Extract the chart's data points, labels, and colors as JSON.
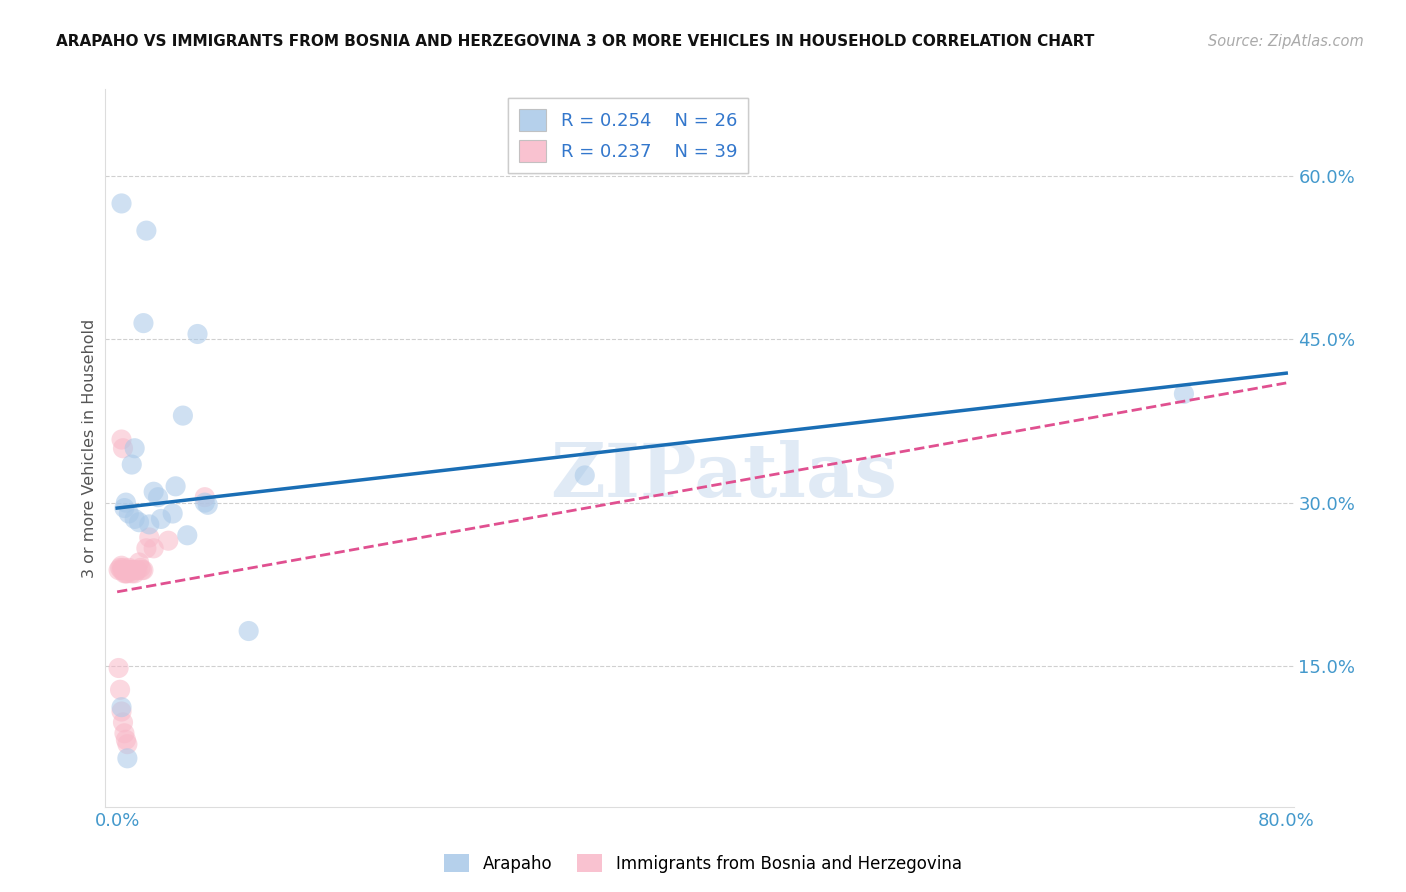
{
  "title": "ARAPAHO VS IMMIGRANTS FROM BOSNIA AND HERZEGOVINA 3 OR MORE VEHICLES IN HOUSEHOLD CORRELATION CHART",
  "source": "Source: ZipAtlas.com",
  "ylabel": "3 or more Vehicles in Household",
  "xlim_min": -0.008,
  "xlim_max": 0.805,
  "ylim_min": 0.02,
  "ylim_max": 0.68,
  "yticks": [
    0.15,
    0.3,
    0.45,
    0.6
  ],
  "ytick_labels": [
    "15.0%",
    "30.0%",
    "45.0%",
    "60.0%"
  ],
  "xtick_vals": [
    0.0,
    0.1,
    0.2,
    0.3,
    0.4,
    0.5,
    0.6,
    0.7,
    0.8
  ],
  "xtick_labels": [
    "0.0%",
    "",
    "",
    "",
    "",
    "",
    "",
    "",
    "80.0%"
  ],
  "watermark": "ZIPatlas",
  "legend_r1": "R = 0.254",
  "legend_n1": "N = 26",
  "legend_r2": "R = 0.237",
  "legend_n2": "N = 39",
  "color_blue": "#a8c8e8",
  "color_pink": "#f8b8c8",
  "color_line_blue": "#1a6eb5",
  "color_line_pink": "#e05090",
  "color_axis_label": "#4499cc",
  "color_grid": "#d0d0d0",
  "arapaho_x": [
    0.003,
    0.022,
    0.008,
    0.045,
    0.012,
    0.006,
    0.009,
    0.01,
    0.038,
    0.06,
    0.025,
    0.012,
    0.005,
    0.09,
    0.32,
    0.73,
    0.017,
    0.04,
    0.003,
    0.007
  ],
  "arapaho_y": [
    0.575,
    0.555,
    0.465,
    0.455,
    0.385,
    0.355,
    0.335,
    0.31,
    0.295,
    0.295,
    0.285,
    0.29,
    0.298,
    0.305,
    0.325,
    0.4,
    0.275,
    0.178,
    0.115,
    0.065
  ],
  "arapaho_x2": [
    0.003,
    0.022,
    0.06,
    0.31,
    0.73,
    0.005,
    0.09
  ],
  "arapaho_y2": [
    0.575,
    0.555,
    0.295,
    0.325,
    0.4,
    0.298,
    0.305
  ],
  "bosnia_x": [
    0.001,
    0.002,
    0.003,
    0.004,
    0.005,
    0.006,
    0.006,
    0.007,
    0.008,
    0.008,
    0.009,
    0.01,
    0.011,
    0.012,
    0.013,
    0.014,
    0.015,
    0.016,
    0.018,
    0.02,
    0.022,
    0.03,
    0.038,
    0.042,
    0.055,
    0.06,
    0.002,
    0.003,
    0.004,
    0.005,
    0.006,
    0.007,
    0.008,
    0.009,
    0.01,
    0.015,
    0.02,
    0.025,
    0.035
  ],
  "bosnia_y": [
    0.235,
    0.235,
    0.24,
    0.235,
    0.235,
    0.24,
    0.235,
    0.235,
    0.235,
    0.24,
    0.235,
    0.235,
    0.235,
    0.24,
    0.235,
    0.235,
    0.245,
    0.24,
    0.235,
    0.235,
    0.24,
    0.265,
    0.268,
    0.235,
    0.305,
    0.265,
    0.35,
    0.36,
    0.245,
    0.225,
    0.205,
    0.185,
    0.175,
    0.155,
    0.145,
    0.115,
    0.095,
    0.085,
    0.08
  ]
}
